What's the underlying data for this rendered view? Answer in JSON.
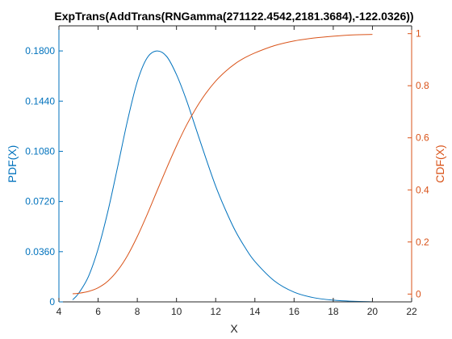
{
  "chart_data": {
    "type": "line",
    "title": "ExpTrans(AddTrans(RNGamma(271122.4542,2181.3684),-122.0326))",
    "xlabel": "X",
    "ylabel_left": "PDF(X)",
    "ylabel_right": "CDF(X)",
    "xlim": [
      4,
      22
    ],
    "ylim_left": [
      0,
      0.198
    ],
    "ylim_right": [
      -0.03,
      1.03
    ],
    "x_ticks": [
      "4",
      "6",
      "8",
      "10",
      "12",
      "14",
      "16",
      "18",
      "20",
      "22"
    ],
    "y_left_ticks": [
      "0",
      "0.0360",
      "0.0720",
      "0.1080",
      "0.1440",
      "0.1800"
    ],
    "y_right_ticks": [
      "0",
      "0.2",
      "0.4",
      "0.6",
      "0.8",
      "1"
    ],
    "colors": {
      "left": "#0072BD",
      "right": "#D95319",
      "axis": "#262626"
    },
    "series": [
      {
        "axis": "left",
        "x": [
          4.7,
          5.0,
          5.5,
          6.0,
          6.5,
          7.0,
          7.5,
          8.0,
          8.5,
          9.0,
          9.5,
          10.0,
          10.5,
          11.0,
          11.5,
          12.0,
          12.5,
          13.0,
          13.5,
          14.0,
          15.0,
          16.0,
          17.0,
          18.0,
          19.0,
          20.0
        ],
        "y": [
          0.0015,
          0.006,
          0.018,
          0.038,
          0.065,
          0.097,
          0.13,
          0.158,
          0.175,
          0.18,
          0.176,
          0.163,
          0.145,
          0.124,
          0.103,
          0.083,
          0.066,
          0.051,
          0.039,
          0.029,
          0.015,
          0.007,
          0.003,
          0.0012,
          0.0004,
          0.0001
        ]
      },
      {
        "axis": "right",
        "x": [
          4.7,
          5.0,
          5.5,
          6.0,
          6.5,
          7.0,
          7.5,
          8.0,
          8.5,
          9.0,
          9.5,
          10.0,
          10.5,
          11.0,
          11.5,
          12.0,
          12.5,
          13.0,
          13.5,
          14.0,
          15.0,
          16.0,
          17.0,
          18.0,
          19.0,
          20.0
        ],
        "y": [
          0.001,
          0.003,
          0.01,
          0.024,
          0.05,
          0.091,
          0.148,
          0.221,
          0.305,
          0.395,
          0.484,
          0.569,
          0.647,
          0.714,
          0.771,
          0.818,
          0.855,
          0.885,
          0.908,
          0.926,
          0.954,
          0.972,
          0.983,
          0.99,
          0.995,
          0.997
        ]
      }
    ]
  }
}
